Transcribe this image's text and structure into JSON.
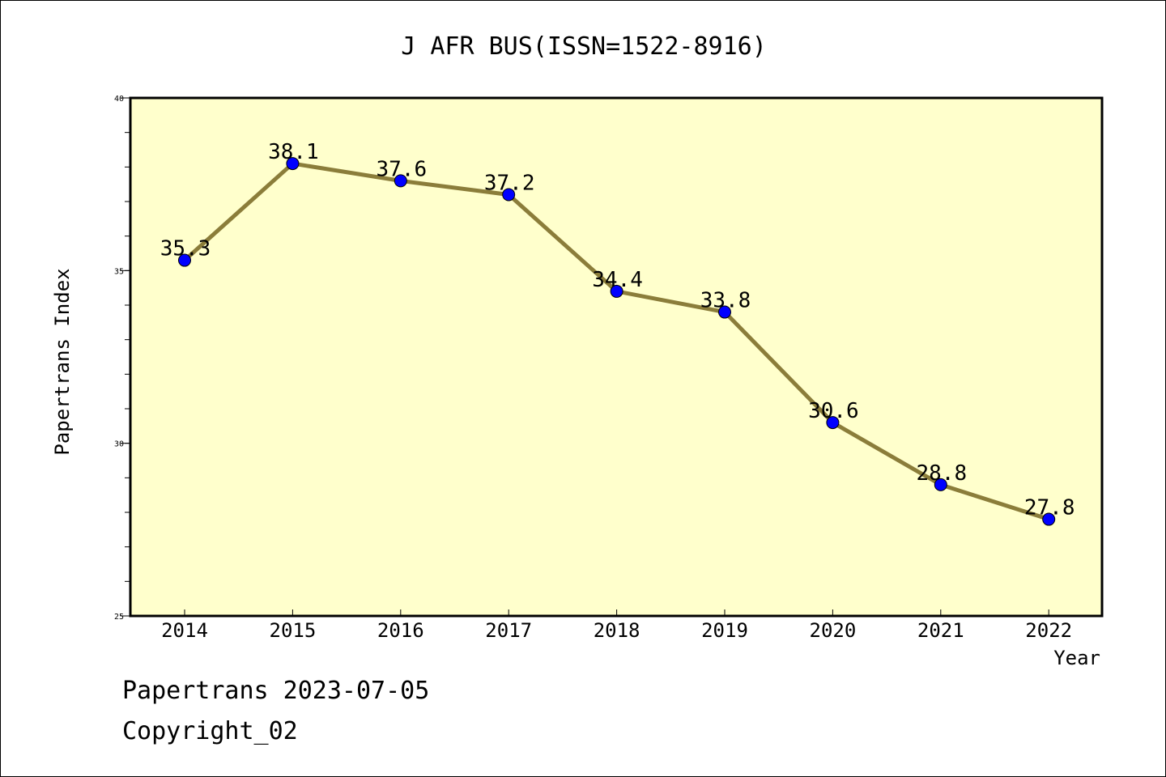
{
  "chart_data": {
    "type": "line",
    "title": "J AFR BUS(ISSN=1522-8916)",
    "xlabel": "Year",
    "ylabel": "Papertrans Index",
    "x": [
      "2014",
      "2015",
      "2016",
      "2017",
      "2018",
      "2019",
      "2020",
      "2021",
      "2022"
    ],
    "series": [
      {
        "values": [
          35.3,
          38.1,
          37.6,
          37.2,
          34.4,
          33.8,
          30.6,
          28.8,
          27.8
        ],
        "data_labels": [
          "35.3",
          "38.1",
          "37.6",
          "37.2",
          "34.4",
          "33.8",
          "30.6",
          "28.8",
          "27.8"
        ]
      }
    ],
    "ylim": [
      25,
      40
    ],
    "yticks": [
      "25",
      "30",
      "35",
      "40"
    ],
    "y_minor_step": 1,
    "grid": false,
    "colors": {
      "plot_background": "#ffffcc",
      "line": "#8b7d3a",
      "marker": "#0000ff"
    }
  },
  "footer": {
    "line1": "Papertrans 2023-07-05",
    "line2": "Copyright_02"
  }
}
